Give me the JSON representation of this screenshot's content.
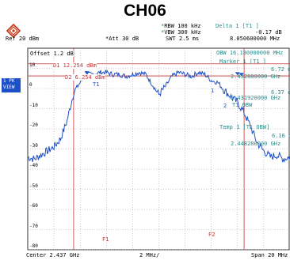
{
  "title": "CH06",
  "logo": {
    "icon": "rohde-schwarz-diamond-icon",
    "color": "#c83214"
  },
  "header": {
    "star1": "*",
    "rbw": "RBW 100 kHz",
    "star2": "*",
    "vbw": "VBW 300 kHz",
    "swt": "SWT 2.5 ms",
    "ref": "Ref  20 dBm",
    "att": "*Att  30 dB",
    "delta_title": "Delta 1 [T1 ]",
    "delta_value": "-0.17  dB",
    "delta_freq": "8.050600000 MHz"
  },
  "side_box": {
    "line1": "1 PK",
    "line2": "VIEW"
  },
  "offset": "Offset  1.2 dB",
  "y_labels": [
    "10",
    "0",
    "-10",
    "-20",
    "-30",
    "-40",
    "-50",
    "-60",
    "-70",
    "-80"
  ],
  "markers": {
    "d1": "D1 12.254 dBm",
    "d2": "D2 6.254 dBm",
    "t1": "T1",
    "f1": "F1",
    "f2": "F2",
    "delta_marker": "1",
    "obw_marker": "2"
  },
  "info_panel": {
    "obw": "OBW 16.180000000 MHz",
    "marker1": "Marker 1 [T1 ]",
    "m1_level": "6.72 dBm",
    "m1_freq": "2.432880000 GHz",
    "t1obw": "T1 OBW",
    "t1obw_level": "6.37 dBm",
    "t1obw_freq": "2.431920000 GHz",
    "temp": "Temp 1 [T1 OBW]",
    "temp_level": "6.16 dBm",
    "temp_freq": "2.448280000 GHz"
  },
  "footer": {
    "center": "Center 2.437 GHz",
    "span_div": "2 MHz/",
    "span": "Span 20 MHz"
  },
  "chart_data": {
    "type": "line",
    "xlabel": "",
    "ylabel": "",
    "ylim": [
      -80,
      20
    ],
    "x_center_ghz": 2.437,
    "span_mhz": 20,
    "x_unit": "MHz offset",
    "x": [
      -10,
      -9.5,
      -9,
      -8.5,
      -8,
      -7.5,
      -7,
      -6.5,
      -6,
      -5.5,
      -5,
      -4.5,
      -4,
      -3.5,
      -3,
      -2.5,
      -2,
      -1.5,
      -1,
      -0.5,
      0,
      0.5,
      1,
      1.5,
      2,
      2.5,
      3,
      3.5,
      4,
      4.5,
      5,
      5.5,
      6,
      6.5,
      7,
      7.5,
      8,
      8.5,
      9,
      9.5,
      10
    ],
    "y": [
      -34,
      -35,
      -33,
      -31,
      -29,
      -25,
      -16,
      -2,
      3,
      7,
      7,
      8,
      8,
      7,
      7,
      6,
      7,
      8,
      7,
      2,
      -3,
      1,
      6,
      8,
      7,
      6,
      8,
      7,
      4,
      3,
      -1,
      -4,
      -7,
      -12,
      -19,
      -27,
      -31,
      -34,
      -33,
      -35,
      -34
    ],
    "reference_lines": [
      12.254,
      6.254
    ],
    "f_lines_mhz": [
      -6.5,
      6.5
    ],
    "trace_color": "#1e50c8"
  }
}
